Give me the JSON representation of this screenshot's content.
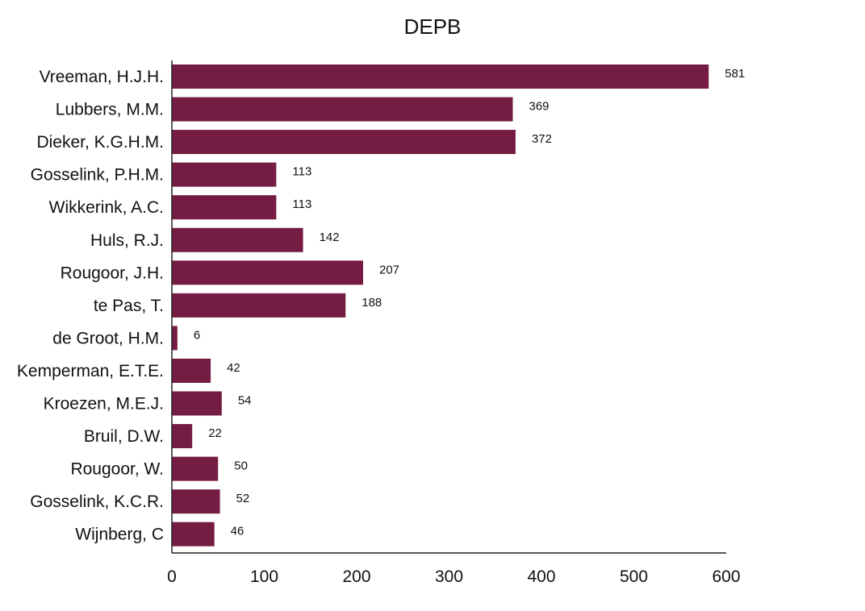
{
  "chart_data": {
    "type": "bar",
    "orientation": "horizontal",
    "title": "DEPB",
    "categories": [
      "Vreeman, H.J.H.",
      "Lubbers, M.M.",
      "Dieker, K.G.H.M.",
      "Gosselink, P.H.M.",
      "Wikkerink, A.C.",
      "Huls, R.J.",
      "Rougoor, J.H.",
      "te Pas, T.",
      "de Groot, H.M.",
      "Kemperman, E.T.E.",
      "Kroezen, M.E.J.",
      "Bruil, D.W.",
      "Rougoor, W.",
      "Gosselink, K.C.R.",
      "Wijnberg, C"
    ],
    "values": [
      581,
      369,
      372,
      113,
      113,
      142,
      207,
      188,
      6,
      42,
      54,
      22,
      50,
      52,
      46
    ],
    "xlim": [
      0,
      600
    ],
    "xticks": [
      0,
      100,
      200,
      300,
      400,
      500,
      600
    ],
    "grid": false,
    "legend": "none",
    "bar_color": "#751c42"
  }
}
